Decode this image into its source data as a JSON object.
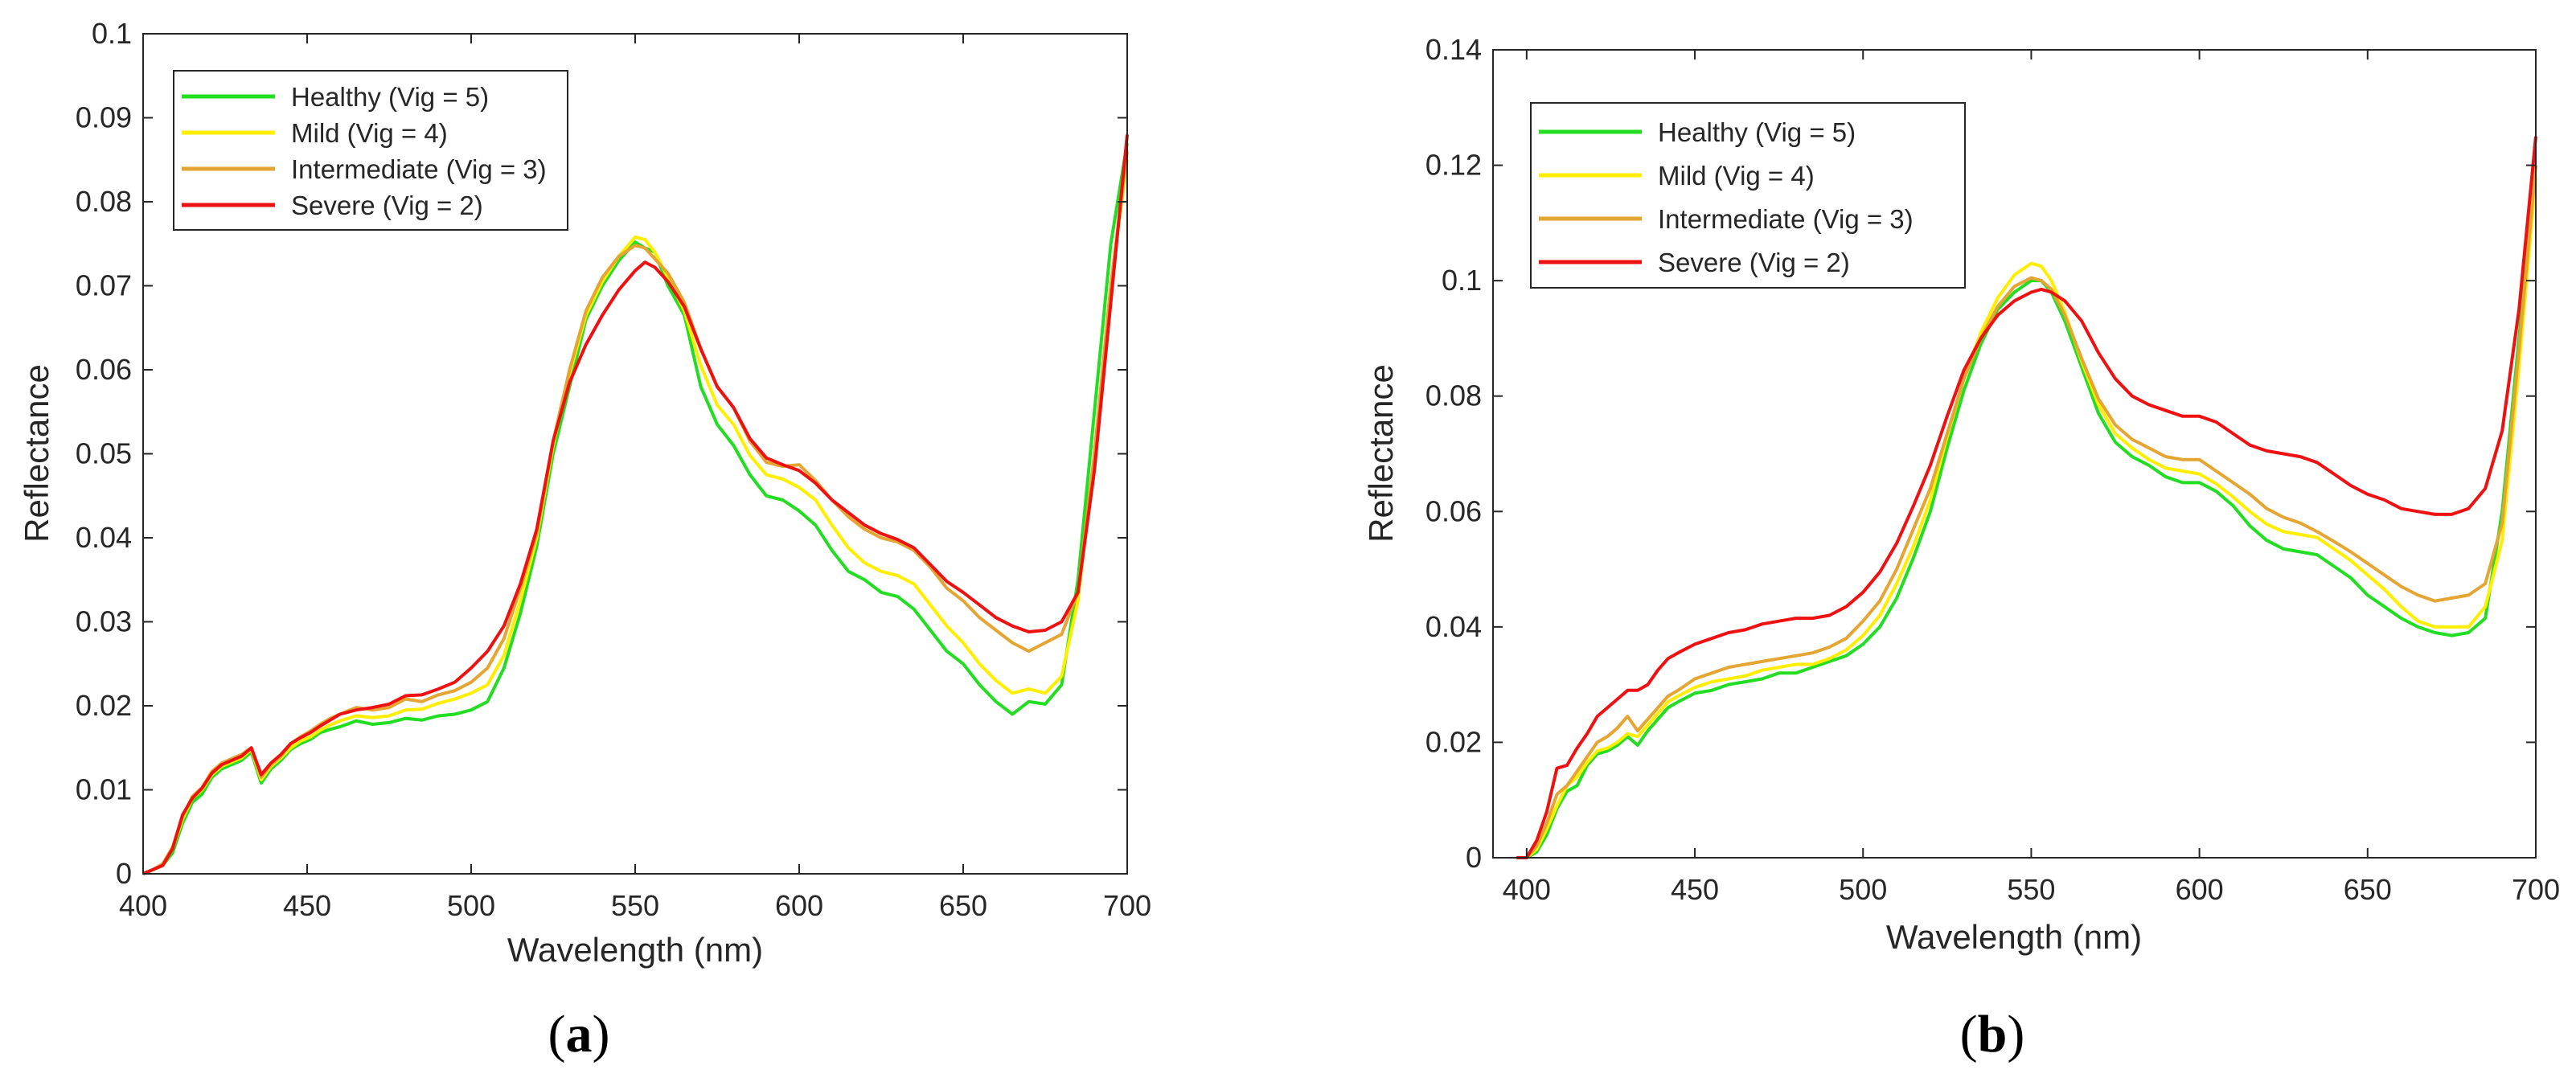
{
  "chart_data": [
    {
      "type": "line",
      "panel_label": "a",
      "title": "",
      "xlabel": "Wavelength (nm)",
      "ylabel": "Reflectance",
      "xlim": [
        400,
        700
      ],
      "ylim": [
        0,
        0.1
      ],
      "xticks": [
        "400",
        "450",
        "500",
        "550",
        "600",
        "650",
        "700"
      ],
      "yticks": [
        "0",
        "0.01",
        "0.02",
        "0.03",
        "0.04",
        "0.05",
        "0.06",
        "0.07",
        "0.08",
        "0.09",
        "0.1"
      ],
      "grid": false,
      "legend_position": "top-left",
      "x": [
        400,
        403,
        406,
        409,
        412,
        415,
        418,
        421,
        424,
        427,
        430,
        433,
        436,
        439,
        442,
        445,
        448,
        451,
        454,
        457,
        460,
        465,
        470,
        475,
        480,
        485,
        490,
        495,
        500,
        505,
        510,
        515,
        520,
        525,
        530,
        535,
        540,
        545,
        550,
        553,
        556,
        560,
        565,
        570,
        575,
        580,
        585,
        590,
        595,
        600,
        605,
        610,
        615,
        620,
        625,
        630,
        635,
        640,
        645,
        650,
        655,
        660,
        665,
        670,
        675,
        680,
        685,
        690,
        695,
        700
      ],
      "series": [
        {
          "name": "Healthy (Vig = 5)",
          "color": "#22dd22",
          "values": [
            0,
            0.0005,
            0.001,
            0.0025,
            0.006,
            0.0085,
            0.0095,
            0.0115,
            0.0125,
            0.013,
            0.0135,
            0.0145,
            0.0108,
            0.0125,
            0.0135,
            0.0148,
            0.0155,
            0.016,
            0.0168,
            0.0172,
            0.0175,
            0.0182,
            0.0178,
            0.018,
            0.0185,
            0.0183,
            0.0188,
            0.019,
            0.0195,
            0.0205,
            0.0245,
            0.031,
            0.039,
            0.05,
            0.058,
            0.066,
            0.07,
            0.073,
            0.0752,
            0.0745,
            0.074,
            0.07,
            0.0665,
            0.058,
            0.0535,
            0.051,
            0.0475,
            0.045,
            0.0445,
            0.0432,
            0.0415,
            0.0385,
            0.036,
            0.035,
            0.0335,
            0.033,
            0.0315,
            0.029,
            0.0265,
            0.025,
            0.0225,
            0.0205,
            0.019,
            0.0205,
            0.0202,
            0.0225,
            0.035,
            0.055,
            0.075,
            0.087
          ]
        },
        {
          "name": "Mild (Vig = 4)",
          "color": "#ffee00",
          "values": [
            0,
            0.0005,
            0.001,
            0.003,
            0.0065,
            0.009,
            0.01,
            0.0118,
            0.0128,
            0.0133,
            0.0138,
            0.0148,
            0.0112,
            0.0128,
            0.0138,
            0.015,
            0.0158,
            0.0163,
            0.0171,
            0.0177,
            0.0182,
            0.0188,
            0.0186,
            0.0188,
            0.0195,
            0.0196,
            0.0203,
            0.0208,
            0.0215,
            0.0225,
            0.026,
            0.0325,
            0.04,
            0.051,
            0.0595,
            0.0665,
            0.0705,
            0.0735,
            0.0758,
            0.0755,
            0.074,
            0.071,
            0.067,
            0.0605,
            0.0558,
            0.0535,
            0.0498,
            0.0475,
            0.047,
            0.046,
            0.0445,
            0.0415,
            0.0388,
            0.037,
            0.036,
            0.0355,
            0.0345,
            0.032,
            0.0295,
            0.0275,
            0.025,
            0.023,
            0.0215,
            0.022,
            0.0215,
            0.0235,
            0.0325,
            0.05,
            0.07,
            0.085
          ]
        },
        {
          "name": "Intermediate (Vig = 3)",
          "color": "#e5a532",
          "values": [
            0,
            0.0005,
            0.0012,
            0.0032,
            0.0068,
            0.0092,
            0.0103,
            0.0122,
            0.0132,
            0.0137,
            0.0142,
            0.015,
            0.0115,
            0.013,
            0.014,
            0.0155,
            0.0163,
            0.017,
            0.0178,
            0.0185,
            0.019,
            0.0198,
            0.0195,
            0.0198,
            0.0208,
            0.0205,
            0.0213,
            0.0218,
            0.0228,
            0.0245,
            0.028,
            0.034,
            0.0405,
            0.0515,
            0.06,
            0.067,
            0.071,
            0.0735,
            0.0748,
            0.0745,
            0.0732,
            0.0715,
            0.068,
            0.0625,
            0.058,
            0.0555,
            0.0515,
            0.049,
            0.0485,
            0.0487,
            0.0468,
            0.0445,
            0.0425,
            0.041,
            0.04,
            0.0395,
            0.0385,
            0.0365,
            0.034,
            0.0325,
            0.0305,
            0.029,
            0.0275,
            0.0265,
            0.0275,
            0.0285,
            0.0335,
            0.05,
            0.07,
            0.086
          ]
        },
        {
          "name": "Severe (Vig = 2)",
          "color": "#ee1111",
          "values": [
            0,
            0.0005,
            0.001,
            0.003,
            0.007,
            0.009,
            0.0102,
            0.012,
            0.013,
            0.0135,
            0.014,
            0.015,
            0.0118,
            0.0132,
            0.0142,
            0.0155,
            0.0162,
            0.0168,
            0.0176,
            0.0183,
            0.019,
            0.0195,
            0.0198,
            0.0202,
            0.0212,
            0.0213,
            0.022,
            0.0228,
            0.0245,
            0.0265,
            0.0295,
            0.0345,
            0.041,
            0.0515,
            0.0585,
            0.063,
            0.0665,
            0.0695,
            0.0718,
            0.0728,
            0.0722,
            0.0705,
            0.0675,
            0.0625,
            0.058,
            0.0555,
            0.0518,
            0.0495,
            0.0487,
            0.048,
            0.0465,
            0.0445,
            0.043,
            0.0415,
            0.0405,
            0.0398,
            0.0388,
            0.0368,
            0.0348,
            0.0335,
            0.032,
            0.0305,
            0.0295,
            0.0288,
            0.029,
            0.03,
            0.0335,
            0.048,
            0.068,
            0.088
          ]
        }
      ]
    },
    {
      "type": "line",
      "panel_label": "b",
      "title": "",
      "xlabel": "Wavelength (nm)",
      "ylabel": "Reflectance",
      "xlim": [
        390,
        700
      ],
      "ylim": [
        0,
        0.14
      ],
      "xticks": [
        "400",
        "450",
        "500",
        "550",
        "600",
        "650",
        "700"
      ],
      "yticks": [
        "0",
        "0.02",
        "0.04",
        "0.06",
        "0.08",
        "0.1",
        "0.12",
        "0.14"
      ],
      "grid": false,
      "legend_position": "top-left",
      "x": [
        397,
        400,
        403,
        406,
        409,
        412,
        415,
        418,
        421,
        424,
        427,
        430,
        433,
        436,
        439,
        442,
        445,
        450,
        455,
        460,
        465,
        470,
        475,
        480,
        485,
        490,
        495,
        500,
        505,
        510,
        515,
        520,
        525,
        530,
        535,
        540,
        545,
        550,
        553,
        556,
        560,
        565,
        570,
        575,
        580,
        585,
        590,
        595,
        600,
        605,
        610,
        615,
        620,
        625,
        630,
        635,
        640,
        645,
        650,
        655,
        660,
        665,
        670,
        675,
        680,
        685,
        690,
        695,
        700
      ],
      "series": [
        {
          "name": "Healthy (Vig = 5)",
          "color": "#22dd22",
          "values": [
            0,
            0,
            0.001,
            0.004,
            0.0085,
            0.0115,
            0.0125,
            0.016,
            0.018,
            0.0185,
            0.0195,
            0.021,
            0.0195,
            0.022,
            0.024,
            0.026,
            0.027,
            0.0285,
            0.029,
            0.03,
            0.0305,
            0.031,
            0.032,
            0.032,
            0.033,
            0.034,
            0.035,
            0.037,
            0.04,
            0.045,
            0.052,
            0.06,
            0.071,
            0.081,
            0.089,
            0.095,
            0.098,
            0.1,
            0.1,
            0.098,
            0.093,
            0.085,
            0.077,
            0.072,
            0.0695,
            0.068,
            0.066,
            0.065,
            0.065,
            0.0635,
            0.061,
            0.0575,
            0.055,
            0.0535,
            0.053,
            0.0525,
            0.0505,
            0.0485,
            0.0455,
            0.0435,
            0.0415,
            0.04,
            0.039,
            0.0385,
            0.039,
            0.0415,
            0.06,
            0.09,
            0.12
          ]
        },
        {
          "name": "Mild (Vig = 4)",
          "color": "#ffee00",
          "values": [
            0,
            0,
            0.0015,
            0.005,
            0.009,
            0.0125,
            0.014,
            0.0165,
            0.0185,
            0.019,
            0.02,
            0.0215,
            0.021,
            0.023,
            0.025,
            0.027,
            0.028,
            0.0295,
            0.0305,
            0.031,
            0.0315,
            0.0325,
            0.033,
            0.0335,
            0.0335,
            0.0345,
            0.036,
            0.0385,
            0.042,
            0.0475,
            0.054,
            0.062,
            0.073,
            0.083,
            0.091,
            0.097,
            0.101,
            0.103,
            0.1025,
            0.1,
            0.0945,
            0.086,
            0.0785,
            0.0735,
            0.071,
            0.069,
            0.0675,
            0.067,
            0.0665,
            0.0648,
            0.0625,
            0.06,
            0.0578,
            0.0565,
            0.056,
            0.0555,
            0.0535,
            0.0515,
            0.049,
            0.0465,
            0.0435,
            0.041,
            0.04,
            0.04,
            0.04,
            0.0435,
            0.055,
            0.085,
            0.118
          ]
        },
        {
          "name": "Intermediate (Vig = 3)",
          "color": "#e5a532",
          "values": [
            0,
            0,
            0.002,
            0.006,
            0.011,
            0.0125,
            0.015,
            0.0175,
            0.02,
            0.021,
            0.0225,
            0.0245,
            0.022,
            0.024,
            0.026,
            0.028,
            0.029,
            0.031,
            0.032,
            0.033,
            0.0335,
            0.034,
            0.0345,
            0.035,
            0.0355,
            0.0365,
            0.038,
            0.041,
            0.0445,
            0.05,
            0.057,
            0.064,
            0.0735,
            0.083,
            0.09,
            0.0955,
            0.099,
            0.1005,
            0.1,
            0.0985,
            0.094,
            0.0865,
            0.0795,
            0.075,
            0.0725,
            0.071,
            0.0695,
            0.069,
            0.069,
            0.067,
            0.065,
            0.063,
            0.0605,
            0.059,
            0.058,
            0.0565,
            0.0548,
            0.053,
            0.051,
            0.049,
            0.047,
            0.0455,
            0.0445,
            0.045,
            0.0455,
            0.0475,
            0.058,
            0.088,
            0.12
          ]
        },
        {
          "name": "Severe (Vig = 2)",
          "color": "#ee1111",
          "values": [
            0,
            0,
            0.003,
            0.008,
            0.0155,
            0.016,
            0.019,
            0.0215,
            0.0245,
            0.026,
            0.0275,
            0.029,
            0.029,
            0.03,
            0.0325,
            0.0345,
            0.0355,
            0.037,
            0.038,
            0.039,
            0.0395,
            0.0405,
            0.041,
            0.0415,
            0.0415,
            0.042,
            0.0435,
            0.046,
            0.0495,
            0.0545,
            0.061,
            0.068,
            0.0765,
            0.0845,
            0.09,
            0.094,
            0.0965,
            0.098,
            0.0985,
            0.098,
            0.0965,
            0.093,
            0.0875,
            0.083,
            0.08,
            0.0785,
            0.0775,
            0.0765,
            0.0765,
            0.0755,
            0.0735,
            0.0715,
            0.0705,
            0.07,
            0.0695,
            0.0685,
            0.0665,
            0.0645,
            0.063,
            0.062,
            0.0605,
            0.06,
            0.0595,
            0.0595,
            0.0605,
            0.064,
            0.074,
            0.095,
            0.125
          ]
        }
      ]
    }
  ]
}
